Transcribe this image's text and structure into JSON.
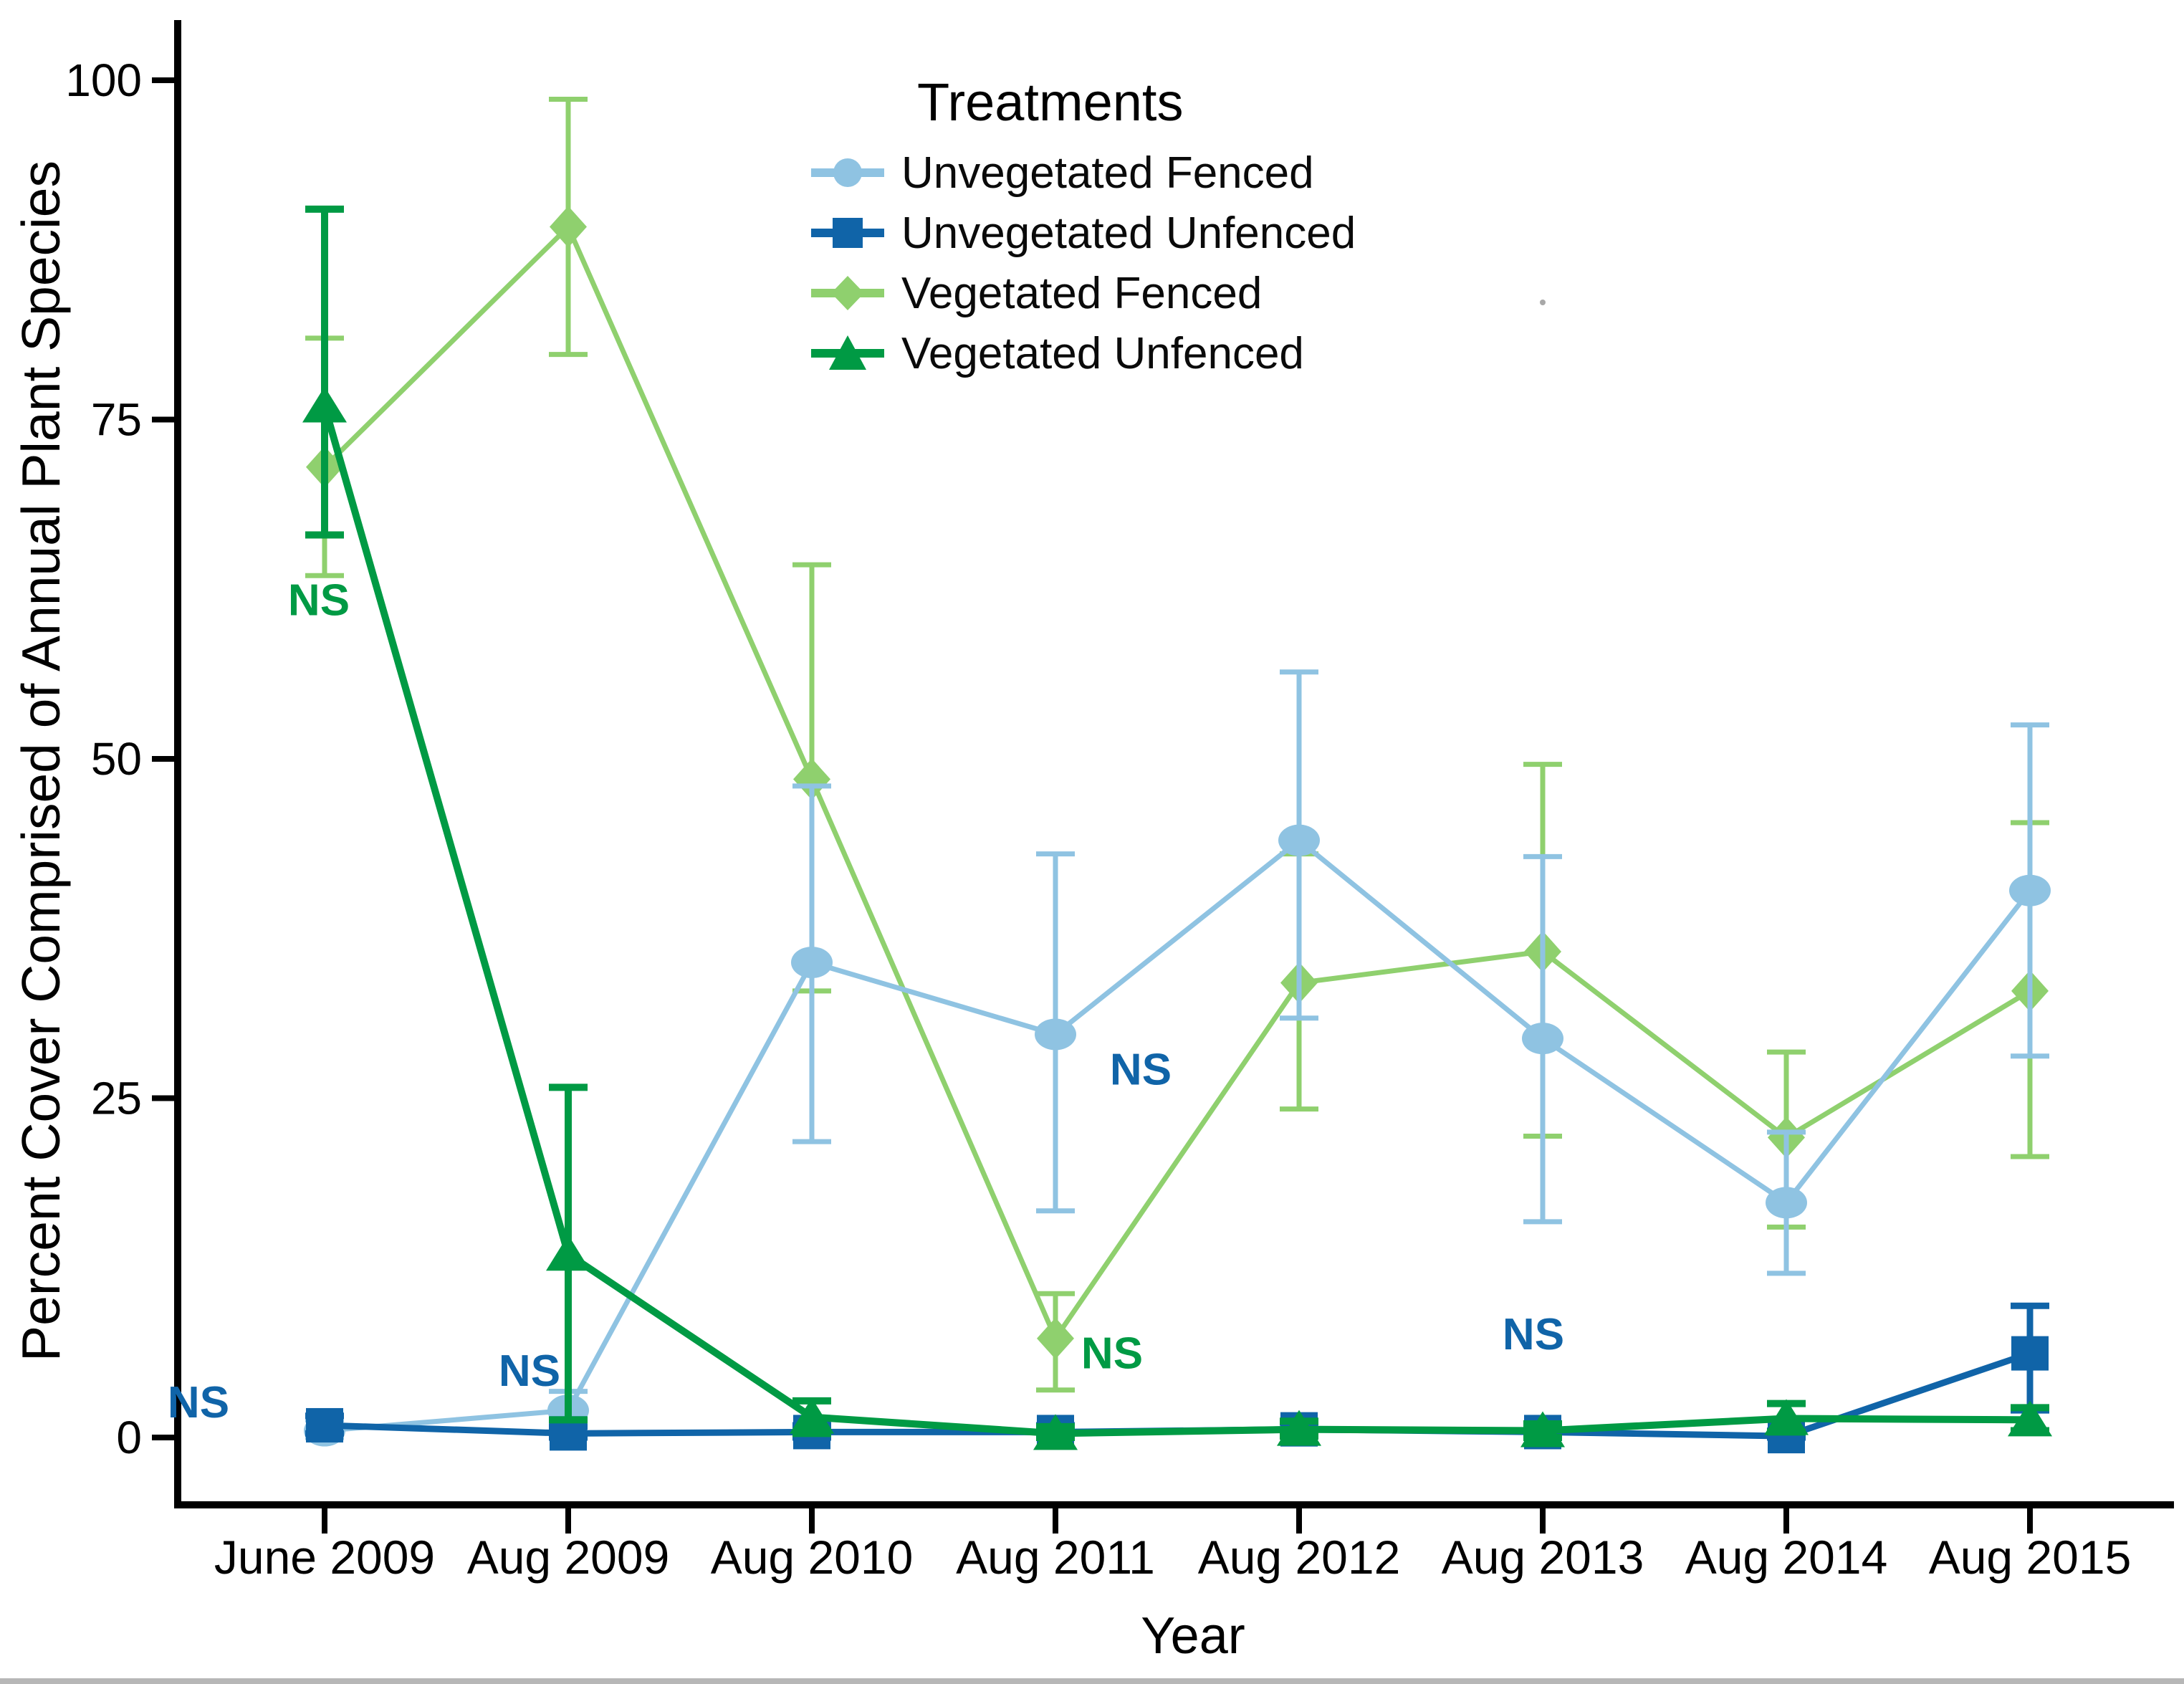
{
  "chart_data": {
    "type": "line",
    "title": "",
    "xlabel": "Year",
    "ylabel": "Percent Cover Comprised of Annual Plant Species",
    "legend_title": "Treatments",
    "legend_position": "top-center-inside",
    "grid": false,
    "ylim": [
      0,
      100
    ],
    "yticks": [
      0,
      25,
      50,
      75,
      100
    ],
    "categories": [
      "June 2009",
      "Aug 2009",
      "Aug 2010",
      "Aug 2011",
      "Aug 2012",
      "Aug 2013",
      "Aug 2014",
      "Aug 2015"
    ],
    "series": [
      {
        "name": "Unvegetated Fenced",
        "marker": "circle",
        "color": "#8FC3E2",
        "line_width": 7,
        "values": [
          0.5,
          2.0,
          35.0,
          29.7,
          44.0,
          29.4,
          17.3,
          40.3
        ],
        "err_low": [
          0.0,
          0.8,
          21.8,
          16.7,
          30.9,
          15.9,
          12.1,
          28.1
        ],
        "err_high": [
          1.3,
          3.4,
          48.0,
          43.0,
          56.4,
          42.8,
          22.5,
          52.5
        ]
      },
      {
        "name": "Unvegetated Unfenced",
        "marker": "square",
        "color": "#1064A8",
        "line_width": 9,
        "values": [
          0.9,
          0.3,
          0.4,
          0.4,
          0.6,
          0.4,
          0.1,
          6.2
        ],
        "err_low": [
          0.3,
          0.0,
          0.0,
          0.0,
          0.1,
          0.0,
          0.0,
          2.0
        ],
        "err_high": [
          1.6,
          0.8,
          0.9,
          0.9,
          1.1,
          0.9,
          0.5,
          9.7
        ]
      },
      {
        "name": "Vegetated Fenced",
        "marker": "diamond",
        "color": "#8FD06E",
        "line_width": 7,
        "values": [
          71.5,
          89.2,
          48.5,
          7.3,
          33.5,
          35.8,
          22.1,
          32.9
        ],
        "err_low": [
          63.5,
          79.8,
          32.9,
          3.5,
          24.2,
          22.2,
          15.5,
          20.7
        ],
        "err_high": [
          81.0,
          98.6,
          64.3,
          10.6,
          43.0,
          49.6,
          28.4,
          45.3
        ]
      },
      {
        "name": "Vegetated Unfenced",
        "marker": "triangle",
        "color": "#009A44",
        "line_width": 10,
        "values": [
          76.0,
          13.5,
          1.5,
          0.3,
          0.6,
          0.5,
          1.4,
          1.3
        ],
        "err_low": [
          66.5,
          1.3,
          0.3,
          0.0,
          0.1,
          0.0,
          0.4,
          0.5
        ],
        "err_high": [
          90.5,
          25.8,
          2.7,
          0.8,
          1.2,
          1.0,
          2.5,
          2.2
        ]
      }
    ],
    "draw_order": [
      2,
      0,
      1,
      3
    ],
    "annotations": [
      {
        "text": "NS",
        "color": "#1064A8",
        "x_index": 0,
        "value": 2.6,
        "dx": -176
      },
      {
        "text": "NS",
        "color": "#009A44",
        "x_index": 0,
        "value": 61.7,
        "dx": -8
      },
      {
        "text": "NS",
        "color": "#1064A8",
        "x_index": 1,
        "value": 4.9,
        "dx": -54
      },
      {
        "text": "NS",
        "color": "#1064A8",
        "x_index": 3,
        "value": 27.1,
        "dx": 119
      },
      {
        "text": "NS",
        "color": "#009A44",
        "x_index": 3,
        "value": 6.2,
        "dx": 79
      },
      {
        "text": "NS",
        "color": "#1064A8",
        "x_index": 5,
        "value": 7.6,
        "dx": -13
      }
    ],
    "speck": {
      "x": 2153,
      "y": 422,
      "color": "#a8a8a8"
    }
  }
}
